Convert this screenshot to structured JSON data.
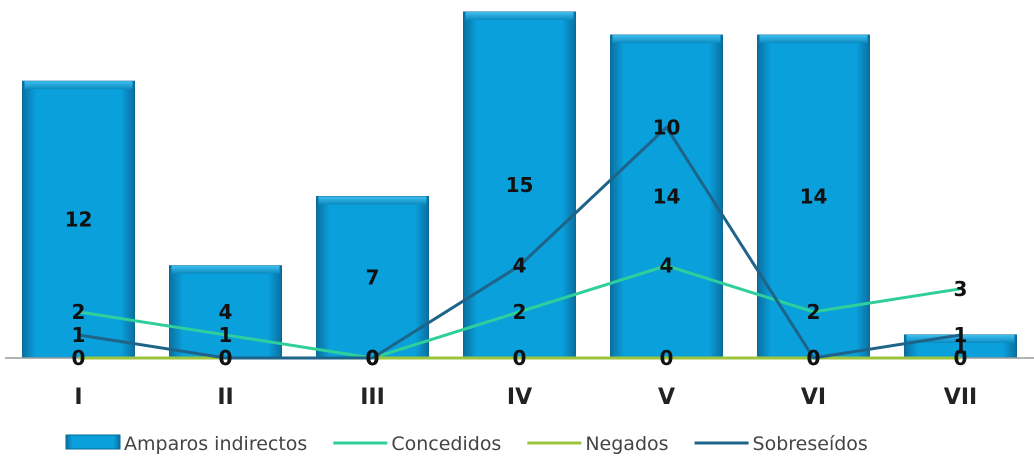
{
  "chart_data": {
    "type": "bar",
    "categories": [
      "I",
      "II",
      "III",
      "IV",
      "V",
      "VI",
      "VII"
    ],
    "series": [
      {
        "name": "Amparos indirectos",
        "kind": "bar",
        "values": [
          12,
          4,
          7,
          15,
          14,
          14,
          1
        ]
      },
      {
        "name": "Concedidos",
        "kind": "line",
        "values": [
          2,
          1,
          0,
          2,
          4,
          2,
          3
        ]
      },
      {
        "name": "Negados",
        "kind": "line",
        "values": [
          0,
          0,
          0,
          0,
          0,
          0,
          0
        ]
      },
      {
        "name": "Sobreseídos",
        "kind": "line",
        "values": [
          1,
          0,
          0,
          4,
          10,
          0,
          1
        ]
      }
    ],
    "ylim": [
      0,
      15
    ],
    "grid": false,
    "legend_position": "bottom",
    "colors": {
      "Amparos indirectos": "#0aa0dc",
      "Concedidos": "#2ecf9a",
      "Negados": "#9cc43c",
      "Sobreseídos": "#1d6488"
    }
  }
}
